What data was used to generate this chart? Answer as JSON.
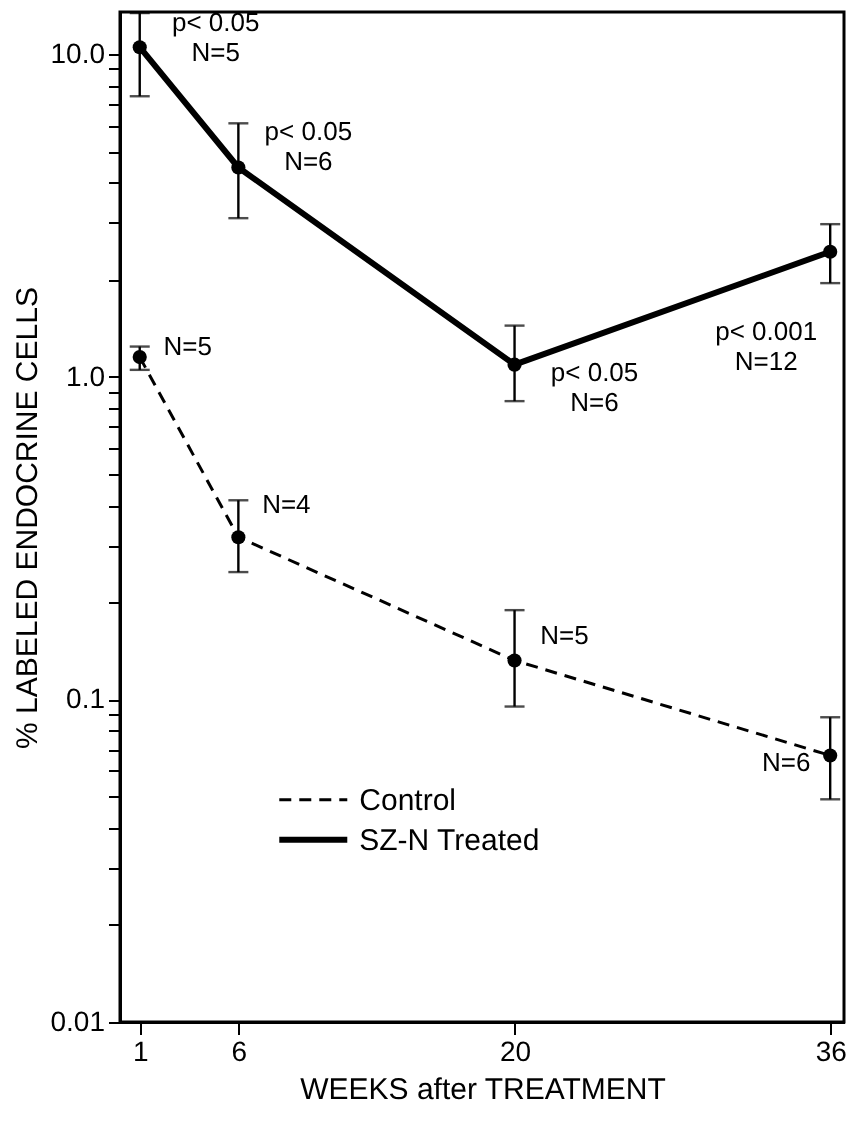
{
  "chart_data": {
    "type": "line",
    "xlabel": "WEEKS after TREATMENT",
    "ylabel": "% LABELED ENDOCRINE CELLS",
    "x": [
      1,
      6,
      20,
      36
    ],
    "series": [
      {
        "name": "Control",
        "color": "#000000",
        "line_style": "dashed",
        "values": [
          1.15,
          0.318,
          0.132,
          0.067
        ],
        "errors": [
          [
            1.05,
            1.24
          ],
          [
            0.248,
            0.414
          ],
          [
            0.095,
            0.189
          ],
          [
            0.049,
            0.088
          ]
        ]
      },
      {
        "name": "SZ-N Treated",
        "color": "#000000",
        "line_style": "solid",
        "values": [
          10.5,
          4.45,
          1.09,
          2.44
        ],
        "errors": [
          [
            7.4,
            13.4
          ],
          [
            3.1,
            6.1
          ],
          [
            0.84,
            1.44
          ],
          [
            1.95,
            2.97
          ]
        ]
      }
    ],
    "log": "y",
    "marker": "circle",
    "grid": false,
    "legend": "bottom left",
    "xlim": [
      0,
      36.7
    ],
    "xticks": [
      1,
      6,
      20,
      36
    ],
    "ylim": [
      0.01,
      13.5
    ],
    "yticks": [
      {
        "value": 0.01,
        "label": "0.01"
      },
      {
        "value": 0.02,
        "label": null
      },
      {
        "value": 0.03,
        "label": null
      },
      {
        "value": 0.04,
        "label": null
      },
      {
        "value": 0.05,
        "label": null
      },
      {
        "value": 0.06,
        "label": null
      },
      {
        "value": 0.07,
        "label": null
      },
      {
        "value": 0.08,
        "label": null
      },
      {
        "value": 0.09,
        "label": null
      },
      {
        "value": 0.1,
        "label": "0.1"
      },
      {
        "value": 0.2,
        "label": null
      },
      {
        "value": 0.3,
        "label": null
      },
      {
        "value": 0.4,
        "label": null
      },
      {
        "value": 0.5,
        "label": null
      },
      {
        "value": 0.6,
        "label": null
      },
      {
        "value": 0.7,
        "label": null
      },
      {
        "value": 0.8,
        "label": null
      },
      {
        "value": 0.9,
        "label": null
      },
      {
        "value": 1,
        "label": "1.0"
      },
      {
        "value": 2,
        "label": null
      },
      {
        "value": 3,
        "label": null
      },
      {
        "value": 4,
        "label": null
      },
      {
        "value": 5,
        "label": null
      },
      {
        "value": 6,
        "label": null
      },
      {
        "value": 7,
        "label": null
      },
      {
        "value": 8,
        "label": null
      },
      {
        "value": 9,
        "label": null
      },
      {
        "value": 10,
        "label": "10.0"
      }
    ],
    "annotations": [
      {
        "text": "p< 0.05\nN=5",
        "x": 1,
        "y": 10.5
      },
      {
        "text": "p< 0.05\nN=6",
        "x": 6,
        "y": 4.45
      },
      {
        "text": "p< 0.05\nN=6",
        "x": 20,
        "y": 1.09
      },
      {
        "text": "p< 0.001\nN=12",
        "x": 36,
        "y": 2.44
      },
      {
        "text": "N=5",
        "x": 1,
        "y": 1.15
      },
      {
        "text": "N=4",
        "x": 6,
        "y": 0.318
      },
      {
        "text": "N=5",
        "x": 20,
        "y": 0.132
      },
      {
        "text": "N=6",
        "x": 36,
        "y": 0.067
      }
    ]
  }
}
